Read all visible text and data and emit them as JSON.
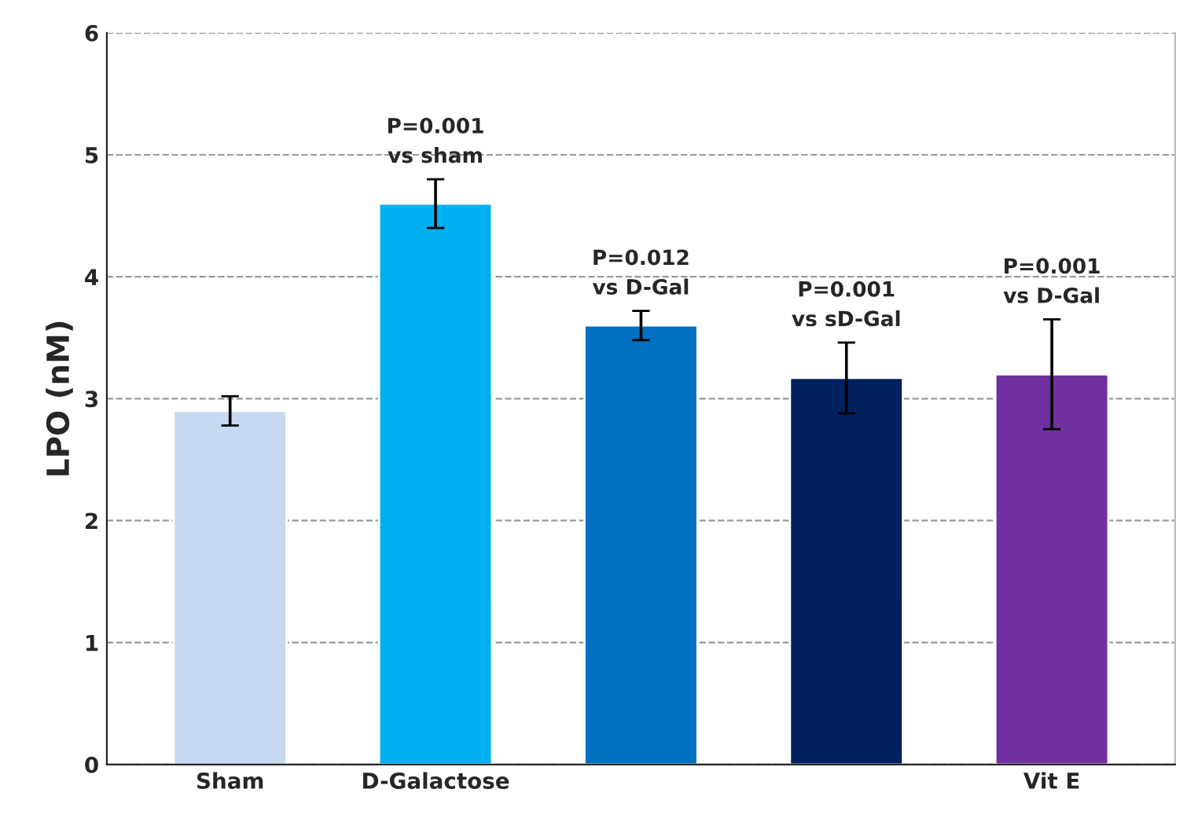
{
  "chart_data": {
    "type": "bar",
    "ylabel": "LPO (nM)",
    "categories": [
      "Sham",
      "D-Galactose",
      null,
      null,
      "Vit E"
    ],
    "values": [
      2.9,
      4.6,
      3.6,
      3.17,
      3.2
    ],
    "colors": [
      "#c6d9f0",
      "#00b0f0",
      "#0070c0",
      "#002060",
      "#7030a0"
    ],
    "errors": [
      0.12,
      0.2,
      0.12,
      0.29,
      0.45
    ],
    "annotations": [
      "P=0.001\nvs sham",
      "P=0.012\nvs D-Gal",
      "P=0.001\nvs sD-Gal",
      "P=0.001\nvs D-Gal"
    ],
    "ylim": [
      0,
      6
    ],
    "yticks": [
      0,
      1,
      2,
      3,
      4,
      5,
      6
    ],
    "grid": "y",
    "legend": false
  }
}
